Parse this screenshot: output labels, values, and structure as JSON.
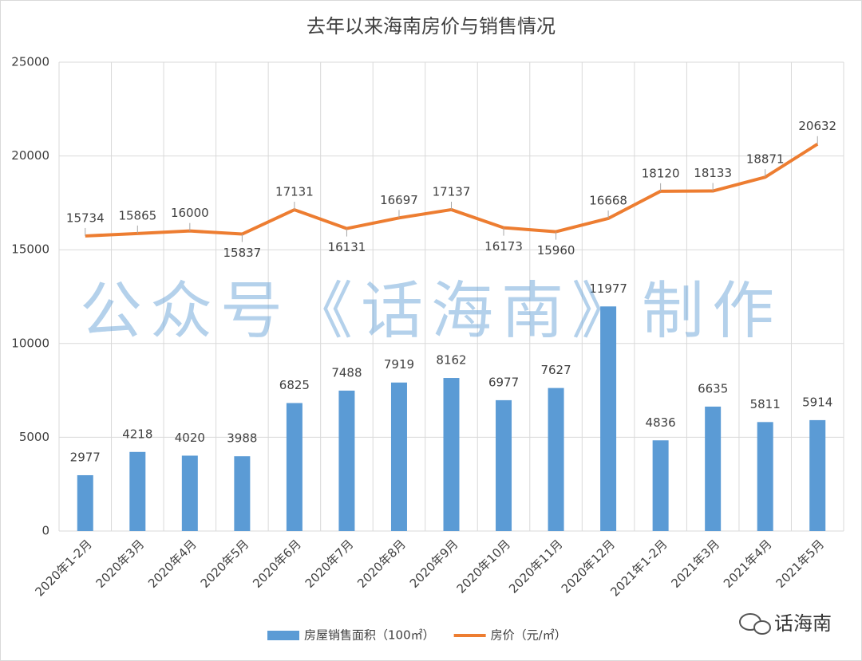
{
  "chart_data": {
    "type": "combo",
    "title": "去年以来海南房价与销售情况",
    "categories": [
      "2020年1-2月",
      "2020年3月",
      "2020年4月",
      "2020年5月",
      "2020年6月",
      "2020年7月",
      "2020年8月",
      "2020年9月",
      "2020年10月",
      "2020年11月",
      "2020年12月",
      "2021年1-2月",
      "2021年3月",
      "2021年4月",
      "2021年5月"
    ],
    "series": [
      {
        "name": "房屋销售面积（100㎡）",
        "type": "bar",
        "color": "#5b9bd5",
        "values": [
          2977,
          4218,
          4020,
          3988,
          6825,
          7488,
          7919,
          8162,
          6977,
          7627,
          11977,
          4836,
          6635,
          5811,
          5914
        ]
      },
      {
        "name": "房价（元/㎡）",
        "type": "line",
        "color": "#ed7d31",
        "values": [
          15734,
          15865,
          16000,
          15837,
          17131,
          16131,
          16697,
          17137,
          16173,
          15960,
          16668,
          18120,
          18133,
          18871,
          20632
        ]
      }
    ],
    "ylim": [
      0,
      25000
    ],
    "yticks": [
      0,
      5000,
      10000,
      15000,
      20000,
      25000
    ],
    "grid": true,
    "legend": "bottom",
    "watermark": "公众号《话海南》制作",
    "brand": "话海南"
  }
}
